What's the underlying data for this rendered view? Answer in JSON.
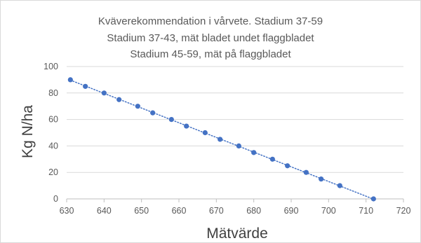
{
  "chart_data": {
    "type": "scatter",
    "title_lines": [
      "Kväverekommendation i vårvete. Stadium 37-59",
      "Stadium 37-43, mät bladet undet flaggbladet",
      "Stadium 45-59, mät på flaggbladet"
    ],
    "xlabel": "Mätvärde",
    "ylabel": "Kg N/ha",
    "xlim": [
      630,
      720
    ],
    "ylim": [
      0,
      100
    ],
    "x_ticks": [
      "630",
      "640",
      "650",
      "660",
      "670",
      "680",
      "690",
      "700",
      "710",
      "720"
    ],
    "y_ticks": [
      "0",
      "20",
      "40",
      "60",
      "80",
      "100"
    ],
    "grid": "horizontal",
    "trendline": "linear dotted",
    "series_color": "#4472c4",
    "points": [
      {
        "x": 631,
        "y": 90
      },
      {
        "x": 635,
        "y": 85
      },
      {
        "x": 640,
        "y": 80
      },
      {
        "x": 644,
        "y": 75
      },
      {
        "x": 649,
        "y": 70
      },
      {
        "x": 653,
        "y": 65
      },
      {
        "x": 658,
        "y": 60
      },
      {
        "x": 662,
        "y": 55
      },
      {
        "x": 667,
        "y": 50
      },
      {
        "x": 671,
        "y": 45
      },
      {
        "x": 676,
        "y": 40
      },
      {
        "x": 680,
        "y": 35
      },
      {
        "x": 685,
        "y": 30
      },
      {
        "x": 689,
        "y": 25
      },
      {
        "x": 694,
        "y": 20
      },
      {
        "x": 698,
        "y": 15
      },
      {
        "x": 703,
        "y": 10
      },
      {
        "x": 712,
        "y": 0
      }
    ]
  }
}
